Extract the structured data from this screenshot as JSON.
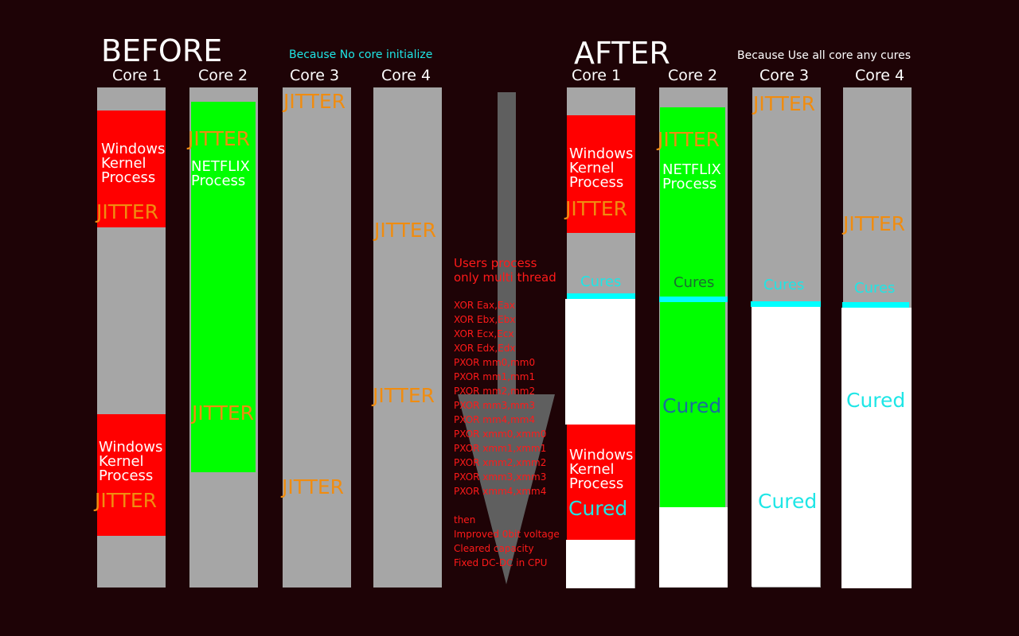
{
  "before": {
    "heading": "BEFORE",
    "note": "Because No core initialize",
    "cores": [
      "Core 1",
      "Core 2",
      "Core 3",
      "Core 4"
    ],
    "jitter": "JITTER",
    "windows_process": [
      "Windows",
      "Kernel",
      "Process"
    ],
    "netflix_process": [
      "NETFLIX",
      "Process"
    ]
  },
  "after": {
    "heading": "AFTER",
    "note": "Because Use all core any cures",
    "cores": [
      "Core 1",
      "Core 2",
      "Core 3",
      "Core 4"
    ],
    "jitter": "JITTER",
    "cures": "Cures",
    "cured": "Cured",
    "windows_process": [
      "Windows",
      "Kernel",
      "Process"
    ],
    "netflix_process": [
      "NETFLIX",
      "Process"
    ]
  },
  "middle": {
    "title": [
      "Users process",
      "only multi thread"
    ],
    "instructions": [
      "XOR Eax,Eax",
      "XOR Ebx,Ebx",
      "XOR Ecx,Ecx",
      "XOR Edx,Edx",
      "PXOR mm0,mm0",
      "PXOR mm1,mm1",
      "PXOR mm2,mm2",
      "PXOR mm3,mm3",
      "PXOR mm4,mm4",
      "PXOR xmm0,xmm0",
      "PXOR xmm1,xmm1",
      "PXOR xmm2,xmm2",
      "PXOR xmm3,xmm3",
      "PXOR xmm4,xmm4"
    ],
    "then": "then",
    "results": [
      "Improved 0bit voltage",
      "Cleared capacity",
      "Fixed DC-DC in CPU"
    ]
  },
  "colors": {
    "background": "#1e0306",
    "column": "#a6a6a6",
    "windows": "#ff0000",
    "netflix": "#00ff00",
    "cured": "#ffffff",
    "cures_bar": "#00ffff",
    "jitter_text": "#f08c10",
    "arrow": "#5f5f5f"
  }
}
